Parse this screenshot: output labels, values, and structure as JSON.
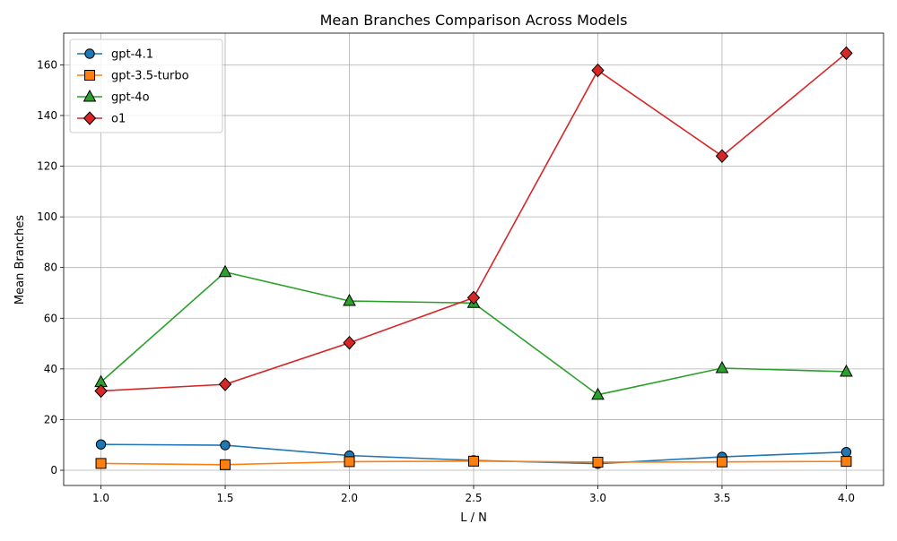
{
  "chart_data": {
    "type": "line",
    "title": "Mean Branches Comparison Across Models",
    "xlabel": "L / N",
    "ylabel": "Mean Branches",
    "x": [
      1.0,
      1.5,
      2.0,
      2.5,
      3.0,
      3.5,
      4.0
    ],
    "xticks": [
      "1.0",
      "1.5",
      "2.0",
      "2.5",
      "3.0",
      "3.5",
      "4.0"
    ],
    "yticks": [
      "0",
      "20",
      "40",
      "60",
      "80",
      "100",
      "120",
      "140",
      "160"
    ],
    "xlim": [
      0.85,
      4.15
    ],
    "ylim": [
      -6,
      172.5
    ],
    "grid": true,
    "legend_position": "top-left",
    "series": [
      {
        "name": "gpt-4.1",
        "color": "#1f77b4",
        "marker": "circle",
        "values": [
          10.2,
          9.9,
          5.8,
          3.9,
          2.6,
          5.3,
          7.2
        ]
      },
      {
        "name": "gpt-3.5-turbo",
        "color": "#ff7f0e",
        "marker": "square",
        "values": [
          2.7,
          2.2,
          3.4,
          3.6,
          3.2,
          3.3,
          3.5
        ]
      },
      {
        "name": "gpt-4o",
        "color": "#2ca02c",
        "marker": "triangle",
        "values": [
          34.8,
          78.2,
          66.8,
          66.0,
          29.8,
          40.3,
          38.9
        ]
      },
      {
        "name": "o1",
        "color": "#d62728",
        "marker": "diamond",
        "values": [
          31.3,
          33.9,
          50.3,
          68.1,
          157.8,
          124.0,
          164.6
        ]
      }
    ]
  }
}
